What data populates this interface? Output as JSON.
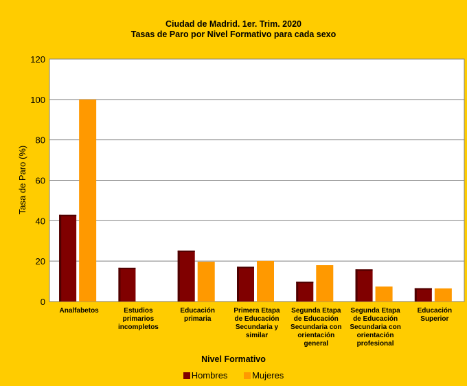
{
  "colors": {
    "background": "#FFCC00",
    "plot_bg": "#FFFFFF",
    "hombres": "#800000",
    "mujeres": "#FF9900"
  },
  "chart_data": {
    "type": "bar",
    "title": "Ciudad de Madrid. 1er. Trim. 2020",
    "subtitle": "Tasas de Paro por Nivel Formativo para cada sexo",
    "xlabel": "Nivel Formativo",
    "ylabel": "Tasa de Paro (%)",
    "ylim": [
      0,
      120
    ],
    "yticks": [
      0,
      20,
      40,
      60,
      80,
      100,
      120
    ],
    "grid": true,
    "legend_position": "bottom",
    "categories": [
      [
        "Analfabetos"
      ],
      [
        "Estudios",
        "primarios",
        "incompletos"
      ],
      [
        "Educación",
        "primaria"
      ],
      [
        "Primera Etapa",
        "de Educación",
        "Secundaria y",
        "similar"
      ],
      [
        "Segunda Etapa",
        "de Educación",
        "Secundaria con",
        "orientación",
        "general"
      ],
      [
        "Segunda Etapa",
        "de Educación",
        "Secundaria con",
        "orientación",
        "profesional"
      ],
      [
        "Educación",
        "Superior"
      ]
    ],
    "series": [
      {
        "name": "Hombres",
        "values": [
          42.9,
          16.7,
          25.2,
          17.2,
          9.8,
          15.9,
          6.6
        ]
      },
      {
        "name": "Mujeres",
        "values": [
          100.0,
          0,
          19.7,
          20.1,
          18.0,
          7.4,
          6.5
        ]
      }
    ]
  }
}
